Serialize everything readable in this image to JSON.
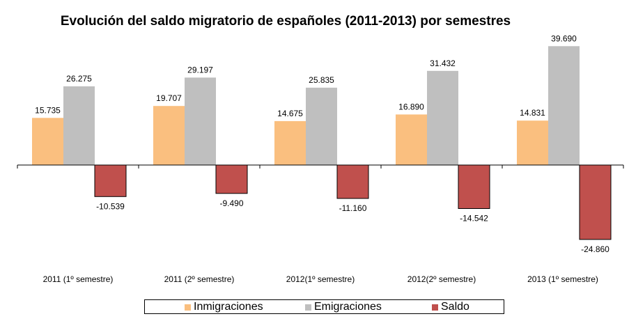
{
  "chart_data": {
    "type": "bar",
    "title": "Evolución del saldo migratorio de españoles (2011-2013) por semestres",
    "categories": [
      "2011 (1º semestre)",
      "2011 (2º semestre)",
      "2012(1º semestre)",
      "2012(2º semestre)",
      "2013 (1º semestre)"
    ],
    "series": [
      {
        "name": "Inmigraciones",
        "color": "#FABF7F",
        "values": [
          15735,
          19707,
          14675,
          16890,
          14831
        ],
        "labels": [
          "15.735",
          "19.707",
          "14.675",
          "16.890",
          "14.831"
        ]
      },
      {
        "name": "Emigraciones",
        "color": "#BFBFBF",
        "values": [
          26275,
          29197,
          25835,
          31432,
          39690
        ],
        "labels": [
          "26.275",
          "29.197",
          "25.835",
          "31.432",
          "39.690"
        ]
      },
      {
        "name": "Saldo",
        "color": "#C0504D",
        "values": [
          -10539,
          -9490,
          -11160,
          -14542,
          -24860
        ],
        "labels": [
          "-10.539",
          "-9.490",
          "-11.160",
          "-14.542",
          "-24.860"
        ]
      }
    ],
    "xlabel": "",
    "ylabel": "",
    "ylim": [
      -25000,
      40000
    ],
    "grid": false,
    "legend_position": "bottom"
  }
}
